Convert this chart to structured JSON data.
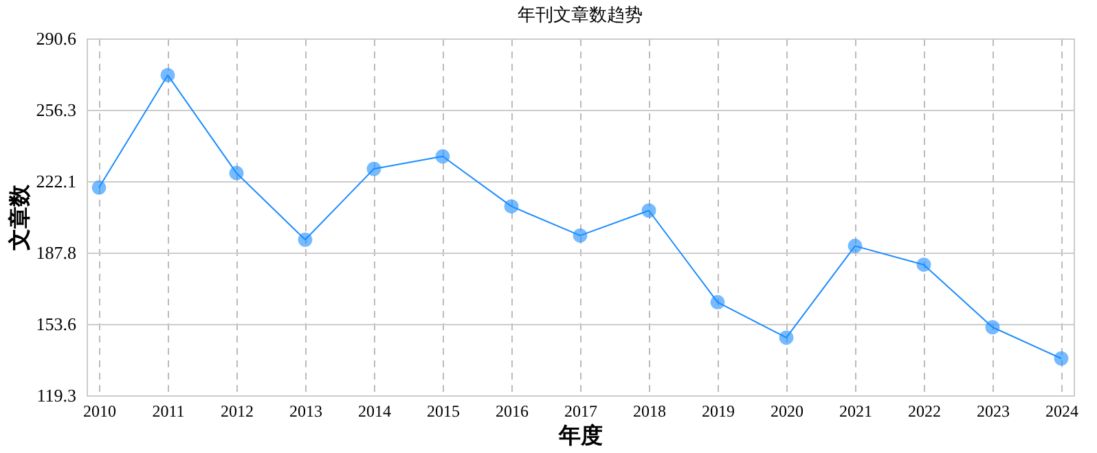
{
  "chart_data": {
    "type": "line",
    "title": "年刊文章数趋势",
    "xlabel": "年度",
    "ylabel": "文章数",
    "categories": [
      "2010",
      "2011",
      "2012",
      "2013",
      "2014",
      "2015",
      "2016",
      "2017",
      "2018",
      "2019",
      "2020",
      "2021",
      "2022",
      "2023",
      "2024"
    ],
    "series": [
      {
        "color": "#1a8cff",
        "values": [
          219,
          273,
          226,
          194,
          228,
          234,
          210,
          196,
          208,
          164,
          147,
          191,
          182,
          152,
          137
        ]
      }
    ],
    "ylim": [
      119.3,
      290.6
    ],
    "yticks": [
      119.3,
      153.6,
      187.8,
      222.1,
      256.3,
      290.6
    ],
    "grid": true,
    "marker": "circle",
    "line_style": "solid"
  }
}
